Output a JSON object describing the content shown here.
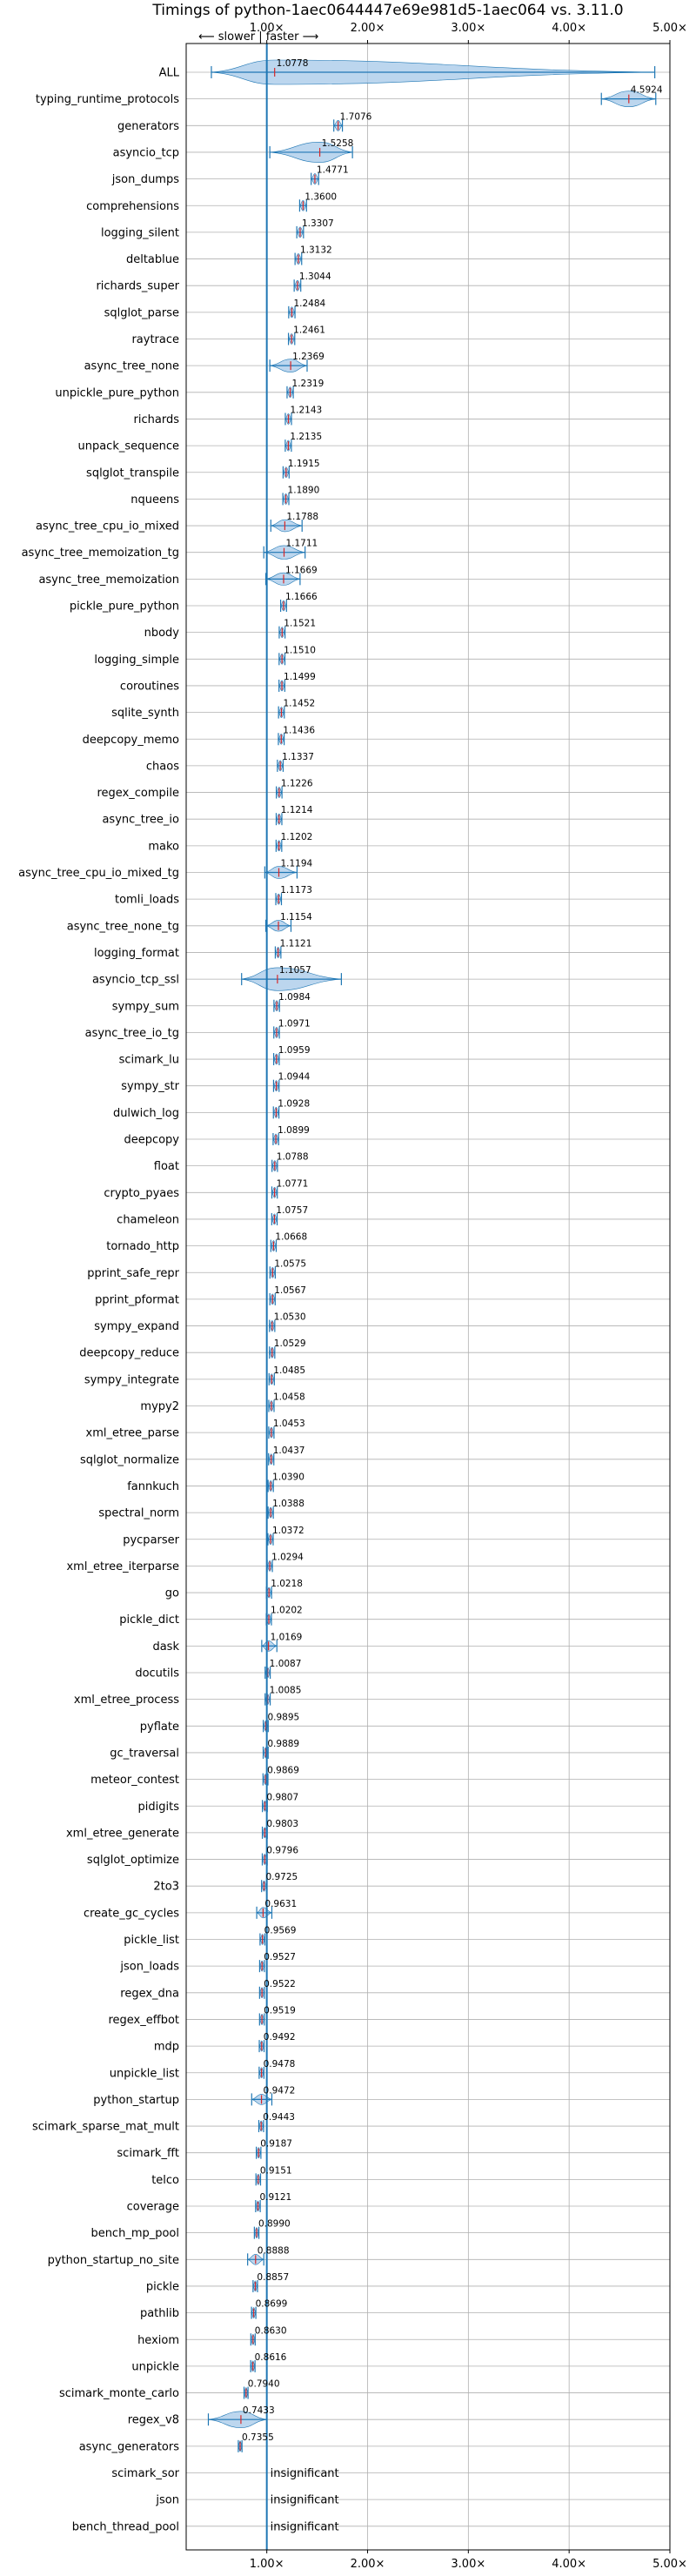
{
  "chart_data": {
    "type": "violin",
    "title": "Timings of python-1aec0644447e69e981d5-1aec064 vs. 3.11.0",
    "direction_label": "⟵ slower | faster ⟶",
    "xlim": [
      0.2,
      5.0
    ],
    "x_ticks": [
      1.0,
      2.0,
      3.0,
      4.0,
      5.0
    ],
    "x_tick_labels": [
      "1.00×",
      "2.00×",
      "3.00×",
      "4.00×",
      "5.00×"
    ],
    "reference_line": 1.0,
    "grid": true,
    "insignificant_label": "insignificant",
    "categories": [
      "ALL",
      "typing_runtime_protocols",
      "generators",
      "asyncio_tcp",
      "json_dumps",
      "comprehensions",
      "logging_silent",
      "deltablue",
      "richards_super",
      "sqlglot_parse",
      "raytrace",
      "async_tree_none",
      "unpickle_pure_python",
      "richards",
      "unpack_sequence",
      "sqlglot_transpile",
      "nqueens",
      "async_tree_cpu_io_mixed",
      "async_tree_memoization_tg",
      "async_tree_memoization",
      "pickle_pure_python",
      "nbody",
      "logging_simple",
      "coroutines",
      "sqlite_synth",
      "deepcopy_memo",
      "chaos",
      "regex_compile",
      "async_tree_io",
      "mako",
      "async_tree_cpu_io_mixed_tg",
      "tomli_loads",
      "async_tree_none_tg",
      "logging_format",
      "asyncio_tcp_ssl",
      "sympy_sum",
      "async_tree_io_tg",
      "scimark_lu",
      "sympy_str",
      "dulwich_log",
      "deepcopy",
      "float",
      "crypto_pyaes",
      "chameleon",
      "tornado_http",
      "pprint_safe_repr",
      "pprint_pformat",
      "sympy_expand",
      "deepcopy_reduce",
      "sympy_integrate",
      "mypy2",
      "xml_etree_parse",
      "sqlglot_normalize",
      "fannkuch",
      "spectral_norm",
      "pycparser",
      "xml_etree_iterparse",
      "go",
      "pickle_dict",
      "dask",
      "docutils",
      "xml_etree_process",
      "pyflate",
      "gc_traversal",
      "meteor_contest",
      "pidigits",
      "xml_etree_generate",
      "sqlglot_optimize",
      "2to3",
      "create_gc_cycles",
      "pickle_list",
      "json_loads",
      "regex_dna",
      "regex_effbot",
      "mdp",
      "unpickle_list",
      "python_startup",
      "scimark_sparse_mat_mult",
      "scimark_fft",
      "telco",
      "coverage",
      "bench_mp_pool",
      "python_startup_no_site",
      "pickle",
      "pathlib",
      "hexiom",
      "unpickle",
      "scimark_monte_carlo",
      "regex_v8",
      "async_generators",
      "scimark_sor",
      "json",
      "bench_thread_pool"
    ],
    "values": [
      1.0778,
      4.5924,
      1.7076,
      1.5258,
      1.4771,
      1.36,
      1.3307,
      1.3132,
      1.3044,
      1.2484,
      1.2461,
      1.2369,
      1.2319,
      1.2143,
      1.2135,
      1.1915,
      1.189,
      1.1788,
      1.1711,
      1.1669,
      1.1666,
      1.1521,
      1.151,
      1.1499,
      1.1452,
      1.1436,
      1.1337,
      1.1226,
      1.1214,
      1.1202,
      1.1194,
      1.1173,
      1.1154,
      1.1121,
      1.1057,
      1.0984,
      1.0971,
      1.0959,
      1.0944,
      1.0928,
      1.0899,
      1.0788,
      1.0771,
      1.0757,
      1.0668,
      1.0575,
      1.0567,
      1.053,
      1.0529,
      1.0485,
      1.0458,
      1.0453,
      1.0437,
      1.039,
      1.0388,
      1.0372,
      1.0294,
      1.0218,
      1.0202,
      1.0169,
      1.0087,
      1.0085,
      0.9895,
      0.9889,
      0.9869,
      0.9807,
      0.9803,
      0.9796,
      0.9725,
      0.9631,
      0.9569,
      0.9527,
      0.9522,
      0.9519,
      0.9492,
      0.9478,
      0.9472,
      0.9443,
      0.9187,
      0.9151,
      0.9121,
      0.899,
      0.8888,
      0.8857,
      0.8699,
      0.863,
      0.8616,
      0.794,
      0.7433,
      0.7355,
      null,
      null,
      null
    ],
    "value_labels": [
      "1.0778",
      "4.5924",
      "1.7076",
      "1.5258",
      "1.4771",
      "1.3600",
      "1.3307",
      "1.3132",
      "1.3044",
      "1.2484",
      "1.2461",
      "1.2369",
      "1.2319",
      "1.2143",
      "1.2135",
      "1.1915",
      "1.1890",
      "1.1788",
      "1.1711",
      "1.1669",
      "1.1666",
      "1.1521",
      "1.1510",
      "1.1499",
      "1.1452",
      "1.1436",
      "1.1337",
      "1.1226",
      "1.1214",
      "1.1202",
      "1.1194",
      "1.1173",
      "1.1154",
      "1.1121",
      "1.1057",
      "1.0984",
      "1.0971",
      "1.0959",
      "1.0944",
      "1.0928",
      "1.0899",
      "1.0788",
      "1.0771",
      "1.0757",
      "1.0668",
      "1.0575",
      "1.0567",
      "1.0530",
      "1.0529",
      "1.0485",
      "1.0458",
      "1.0453",
      "1.0437",
      "1.0390",
      "1.0388",
      "1.0372",
      "1.0294",
      "1.0218",
      "1.0202",
      "1.0169",
      "1.0087",
      "1.0085",
      "0.9895",
      "0.9889",
      "0.9869",
      "0.9807",
      "0.9803",
      "0.9796",
      "0.9725",
      "0.9631",
      "0.9569",
      "0.9527",
      "0.9522",
      "0.9519",
      "0.9492",
      "0.9478",
      "0.9472",
      "0.9443",
      "0.9187",
      "0.9151",
      "0.9121",
      "0.8990",
      "0.8888",
      "0.8857",
      "0.8699",
      "0.8630",
      "0.8616",
      "0.7940",
      "0.7433",
      "0.7355",
      "",
      "",
      ""
    ],
    "ranges": {
      "ALL": [
        0.45,
        4.85
      ],
      "typing_runtime_protocols": [
        4.32,
        4.86
      ],
      "asyncio_tcp": [
        1.03,
        1.85
      ],
      "asyncio_tcp_ssl": [
        0.75,
        1.74
      ],
      "async_tree_memoization_tg": [
        0.97,
        1.38
      ],
      "async_tree_memoization": [
        0.99,
        1.33
      ],
      "async_tree_none": [
        1.03,
        1.4
      ],
      "async_tree_cpu_io_mixed": [
        1.04,
        1.35
      ],
      "async_tree_cpu_io_mixed_tg": [
        0.98,
        1.3
      ],
      "async_tree_none_tg": [
        0.99,
        1.24
      ],
      "regex_v8": [
        0.42,
        1.0
      ],
      "python_startup": [
        0.85,
        1.05
      ],
      "python_startup_no_site": [
        0.81,
        0.97
      ],
      "dask": [
        0.95,
        1.1
      ],
      "create_gc_cycles": [
        0.9,
        1.05
      ]
    },
    "colors": {
      "violin_fill": "#a6c8e8",
      "violin_edge": "#1f77b4",
      "median": "#d62728",
      "reference_line": "#1f77b4",
      "grid": "#b0b0b0"
    }
  }
}
